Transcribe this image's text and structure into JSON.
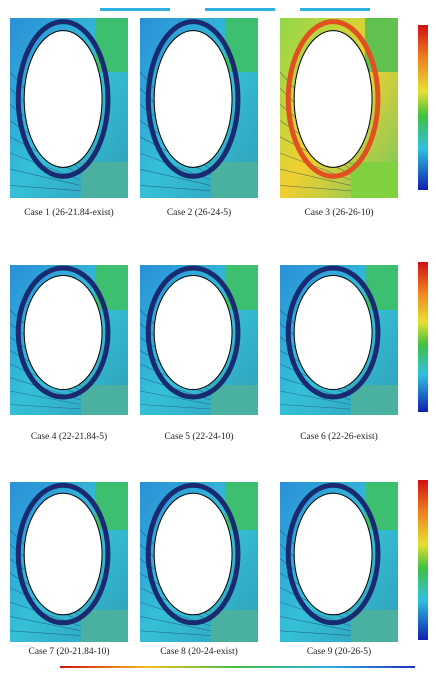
{
  "figure": {
    "captions": [
      "Case 1 (26-21.84-exist)",
      "Case 2 (26-24-5)",
      "Case 3 (26-26-10)",
      "Case 4 (22-21.84-5)",
      "Case 5 (22-24-10)",
      "Case 6 (22-26-exist)",
      "Case 7 (20-21.84-10)",
      "Case 8 (20-24-exist)",
      "Case 9 (20-26-5)"
    ]
  }
}
